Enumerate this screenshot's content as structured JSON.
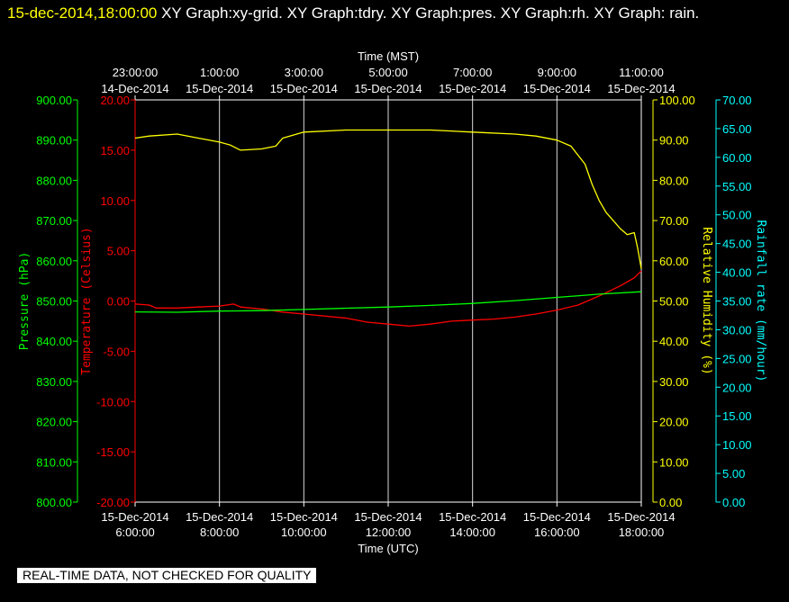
{
  "header": {
    "timestamp": "15-dec-2014,18:00:00",
    "graphs": "XY Graph:xy-grid.  XY Graph:tdry.  XY Graph:pres.  XY Graph:rh.  XY Graph: rain."
  },
  "notice": "REAL-TIME DATA, NOT CHECKED FOR QUALITY",
  "colors": {
    "temperature": "#ff0000",
    "pressure": "#00ff00",
    "humidity": "#ffff00",
    "rainfall": "#00ffff",
    "grid": "#ffffff",
    "background": "#000000"
  },
  "chart_data": {
    "type": "line",
    "grid": true,
    "x_top": {
      "title": "Time (MST)",
      "ticks": [
        {
          "time": "23:00:00",
          "date": "14-Dec-2014"
        },
        {
          "time": "1:00:00",
          "date": "15-Dec-2014"
        },
        {
          "time": "3:00:00",
          "date": "15-Dec-2014"
        },
        {
          "time": "5:00:00",
          "date": "15-Dec-2014"
        },
        {
          "time": "7:00:00",
          "date": "15-Dec-2014"
        },
        {
          "time": "9:00:00",
          "date": "15-Dec-2014"
        },
        {
          "time": "11:00:00",
          "date": "15-Dec-2014"
        }
      ]
    },
    "x_bottom": {
      "title": "Time (UTC)",
      "range": [
        "15-Dec-2014 6:00:00",
        "15-Dec-2014 18:00:00"
      ],
      "ticks": [
        {
          "time": "6:00:00",
          "date": "15-Dec-2014"
        },
        {
          "time": "8:00:00",
          "date": "15-Dec-2014"
        },
        {
          "time": "10:00:00",
          "date": "15-Dec-2014"
        },
        {
          "time": "12:00:00",
          "date": "15-Dec-2014"
        },
        {
          "time": "14:00:00",
          "date": "15-Dec-2014"
        },
        {
          "time": "16:00:00",
          "date": "15-Dec-2014"
        },
        {
          "time": "18:00:00",
          "date": "15-Dec-2014"
        }
      ]
    },
    "axes": {
      "pressure": {
        "label": "Pressure (hPa)",
        "range": [
          800,
          900
        ],
        "ticks": [
          "800.00",
          "810.00",
          "820.00",
          "830.00",
          "840.00",
          "850.00",
          "860.00",
          "870.00",
          "880.00",
          "890.00",
          "900.00"
        ]
      },
      "temperature": {
        "label": "Temperature (Celsius)",
        "range": [
          -20,
          20
        ],
        "ticks": [
          "-20.00",
          "-15.00",
          "-10.00",
          "-5.00",
          "0.00",
          "5.00",
          "10.00",
          "15.00",
          "20.00"
        ]
      },
      "humidity": {
        "label": "Relative Humidity (%)",
        "range": [
          0,
          100
        ],
        "ticks": [
          "0.00",
          "10.00",
          "20.00",
          "30.00",
          "40.00",
          "50.00",
          "60.00",
          "70.00",
          "80.00",
          "90.00",
          "100.00"
        ]
      },
      "rainfall": {
        "label": "Rainfall rate (mm/hour)",
        "range": [
          0,
          70
        ],
        "ticks": [
          "0.00",
          "5.00",
          "10.00",
          "15.00",
          "20.00",
          "25.00",
          "30.00",
          "35.00",
          "40.00",
          "45.00",
          "50.00",
          "55.00",
          "60.00",
          "65.00",
          "70.00"
        ]
      }
    },
    "series": [
      {
        "axis": "temperature",
        "x": [
          "6:00",
          "6:20",
          "6:30",
          "7:00",
          "7:30",
          "8:00",
          "8:20",
          "8:30",
          "9:00",
          "9:30",
          "10:00",
          "11:00",
          "11:30",
          "12:00",
          "12:30",
          "13:00",
          "13:30",
          "14:00",
          "14:30",
          "15:00",
          "15:30",
          "16:00",
          "16:30",
          "17:00",
          "17:30",
          "17:50",
          "18:00"
        ],
        "y": [
          -0.3,
          -0.4,
          -0.7,
          -0.7,
          -0.6,
          -0.5,
          -0.3,
          -0.6,
          -0.8,
          -1.1,
          -1.3,
          -1.7,
          -2.1,
          -2.3,
          -2.5,
          -2.3,
          -2.0,
          -1.9,
          -1.8,
          -1.6,
          -1.3,
          -0.9,
          -0.4,
          0.5,
          1.5,
          2.3,
          3.0
        ]
      },
      {
        "axis": "pressure",
        "x": [
          "6:00",
          "7:00",
          "8:00",
          "9:00",
          "10:00",
          "11:00",
          "12:00",
          "13:00",
          "14:00",
          "15:00",
          "16:00",
          "17:00",
          "18:00"
        ],
        "y": [
          847.3,
          847.2,
          847.5,
          847.6,
          847.9,
          848.2,
          848.5,
          848.9,
          849.4,
          850.1,
          850.9,
          851.7,
          852.3
        ]
      },
      {
        "axis": "humidity",
        "x": [
          "6:00",
          "6:20",
          "7:00",
          "7:30",
          "8:00",
          "8:15",
          "8:30",
          "9:00",
          "9:20",
          "9:30",
          "10:00",
          "11:00",
          "12:00",
          "13:00",
          "14:00",
          "15:00",
          "15:30",
          "16:00",
          "16:20",
          "16:40",
          "16:50",
          "17:00",
          "17:10",
          "17:20",
          "17:30",
          "17:40",
          "17:50",
          "17:55",
          "18:00"
        ],
        "y": [
          90.5,
          91.0,
          91.5,
          90.5,
          89.5,
          88.8,
          87.5,
          87.8,
          88.5,
          90.5,
          92.0,
          92.5,
          92.5,
          92.5,
          92.0,
          91.5,
          91.0,
          90.0,
          88.5,
          84.0,
          79.0,
          75.0,
          72.0,
          70.0,
          68.0,
          66.5,
          67.0,
          63.0,
          58.0
        ]
      }
    ]
  }
}
